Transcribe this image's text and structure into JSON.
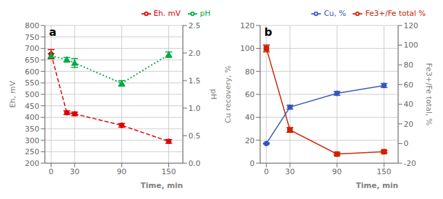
{
  "chart_data": [
    {
      "type": "line",
      "annotations": [
        "a"
      ],
      "xlabel": "Time, min",
      "ylabel": "Eh, mV",
      "y2label": "pH",
      "x": [
        0,
        20,
        30,
        90,
        150
      ],
      "xlim": [
        -8,
        168
      ],
      "xticks": [
        0,
        30,
        90,
        150
      ],
      "ylim": [
        200,
        800
      ],
      "yticks": [
        200,
        250,
        300,
        350,
        400,
        450,
        500,
        550,
        600,
        650,
        700,
        750,
        800
      ],
      "y2lim": [
        0,
        2.5
      ],
      "y2ticks": [
        {
          "value": 0,
          "label": "0.0"
        },
        0.5,
        {
          "value": 1.0,
          "label": "1.0"
        },
        1.5,
        {
          "value": 2.0,
          "label": "2.0"
        },
        2.5
      ],
      "grid": true,
      "legend": "upper right",
      "series": [
        {
          "name": "Eh. mV",
          "color": "#dd0000",
          "values": [
            675,
            420,
            415,
            365,
            295
          ],
          "errors": [
            20,
            8,
            8,
            8,
            8
          ],
          "axis": "y",
          "marker": "circle",
          "line_style": "dashed"
        },
        {
          "name": "pH",
          "color": "#00aa44",
          "values": [
            1.95,
            1.88,
            1.82,
            1.45,
            1.97
          ],
          "errors": [
            0.04,
            0.04,
            0.08,
            0.05,
            0.05
          ],
          "axis": "y2",
          "marker": "triangle",
          "line_style": "dotted"
        }
      ]
    },
    {
      "type": "line",
      "annotations": [
        "b"
      ],
      "xlabel": "Time, min",
      "ylabel": "Cu recovery, %",
      "y2label": "Fe3+/Fe total, %",
      "x": [
        0,
        30,
        90,
        150
      ],
      "xlim": [
        -8,
        168
      ],
      "xticks": [
        0,
        30,
        90,
        150
      ],
      "ylim": [
        0,
        120
      ],
      "yticks": [
        0,
        20,
        40,
        60,
        80,
        100,
        120
      ],
      "y2lim": [
        -20,
        120
      ],
      "y2ticks": [
        -20,
        0,
        20,
        40,
        60,
        80,
        100,
        120
      ],
      "grid": true,
      "legend": "upper right",
      "series": [
        {
          "name": "Fe3+/Fe total %",
          "color": "#cc2200",
          "values": [
            100,
            29,
            8,
            10
          ],
          "errors": [
            3,
            2,
            1,
            1
          ],
          "axis": "y",
          "marker": "square",
          "line_style": "solid"
        },
        {
          "name": "Cu, %",
          "color": "#3355bb",
          "values": [
            0,
            37,
            51,
            59
          ],
          "errors": [
            0.5,
            2,
            2,
            2
          ],
          "axis": "y2",
          "marker": "circle",
          "line_style": "solid"
        }
      ]
    }
  ]
}
